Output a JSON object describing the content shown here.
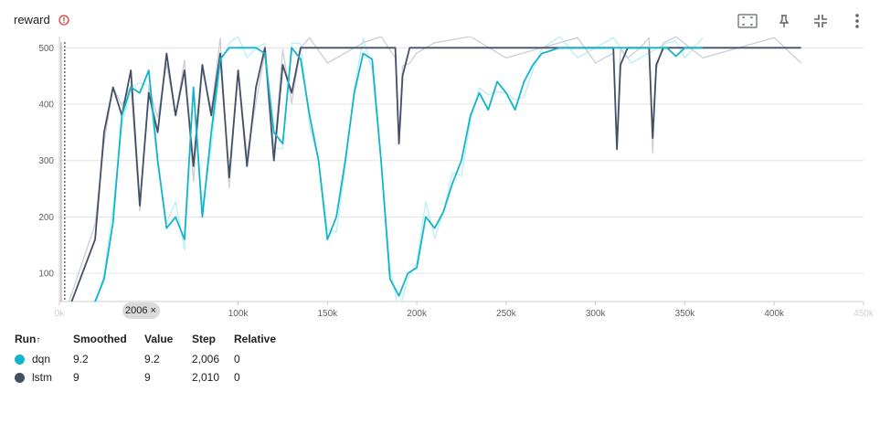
{
  "header": {
    "title": "reward",
    "warning_icon": "warning-circle-icon",
    "tools": [
      "fit-domain-icon",
      "pin-icon",
      "collapse-icon",
      "more-vert-icon"
    ]
  },
  "colors": {
    "dqn": "#12b5cb",
    "lstm": "#425066",
    "dqn_raw": "#b9eef4",
    "lstm_raw": "#c9ced8",
    "grid": "#e4e4e4"
  },
  "badge": {
    "label": "2006",
    "close": "×"
  },
  "legend": {
    "headers": {
      "run": "Run",
      "sort": "↑",
      "smoothed": "Smoothed",
      "value": "Value",
      "step": "Step",
      "relative": "Relative"
    },
    "rows": [
      {
        "run": "dqn",
        "smoothed": "9.2",
        "value": "9.2",
        "step": "2,006",
        "relative": "0"
      },
      {
        "run": "lstm",
        "smoothed": "9",
        "value": "9",
        "step": "2,010",
        "relative": "0"
      }
    ]
  },
  "chart_data": {
    "type": "line",
    "title": "reward",
    "xlabel": "",
    "ylabel": "",
    "xlim": [
      0,
      450000
    ],
    "ylim": [
      50,
      520
    ],
    "x_ticks": [
      "0k",
      "50k",
      "100k",
      "150k",
      "200k",
      "250k",
      "300k",
      "350k",
      "400k",
      "450k"
    ],
    "y_ticks": [
      "100",
      "200",
      "300",
      "400",
      "500"
    ],
    "cursor_step": 2006,
    "series": [
      {
        "name": "dqn",
        "x": [
          2006,
          20000,
          25000,
          30000,
          35000,
          40000,
          45000,
          50000,
          55000,
          60000,
          65000,
          70000,
          75000,
          80000,
          85000,
          90000,
          95000,
          100000,
          105000,
          110000,
          115000,
          120000,
          125000,
          130000,
          135000,
          140000,
          145000,
          150000,
          155000,
          160000,
          165000,
          170000,
          175000,
          180000,
          185000,
          190000,
          195000,
          200000,
          205000,
          210000,
          215000,
          220000,
          225000,
          230000,
          235000,
          240000,
          245000,
          250000,
          255000,
          260000,
          265000,
          270000,
          280000,
          290000,
          300000,
          310000,
          320000,
          330000,
          340000,
          345000,
          350000,
          355000,
          360000
        ],
        "values": [
          9,
          50,
          90,
          190,
          380,
          430,
          420,
          460,
          300,
          180,
          200,
          160,
          430,
          200,
          350,
          480,
          500,
          500,
          500,
          500,
          490,
          350,
          330,
          500,
          480,
          380,
          300,
          160,
          200,
          300,
          420,
          490,
          480,
          300,
          90,
          60,
          100,
          110,
          200,
          180,
          210,
          260,
          300,
          380,
          420,
          390,
          440,
          420,
          390,
          440,
          470,
          490,
          500,
          500,
          500,
          500,
          500,
          500,
          500,
          485,
          500,
          500,
          500
        ]
      },
      {
        "name": "lstm",
        "x": [
          2010,
          20000,
          25000,
          30000,
          35000,
          40000,
          45000,
          50000,
          55000,
          60000,
          65000,
          70000,
          75000,
          80000,
          85000,
          90000,
          95000,
          100000,
          105000,
          110000,
          115000,
          120000,
          125000,
          130000,
          135000,
          140000,
          150000,
          160000,
          170000,
          180000,
          188000,
          190000,
          192000,
          196000,
          200000,
          210000,
          230000,
          250000,
          270000,
          290000,
          300000,
          310000,
          312000,
          314000,
          318000,
          325000,
          330000,
          332000,
          334000,
          338000,
          345000,
          360000,
          380000,
          400000,
          415000
        ],
        "values": [
          9,
          160,
          350,
          430,
          380,
          460,
          220,
          420,
          350,
          490,
          380,
          460,
          290,
          470,
          380,
          490,
          270,
          460,
          290,
          430,
          500,
          300,
          470,
          420,
          500,
          500,
          500,
          500,
          500,
          500,
          500,
          330,
          450,
          500,
          500,
          500,
          500,
          500,
          500,
          500,
          500,
          500,
          320,
          470,
          500,
          500,
          500,
          340,
          470,
          500,
          500,
          500,
          500,
          500,
          500
        ]
      }
    ]
  }
}
